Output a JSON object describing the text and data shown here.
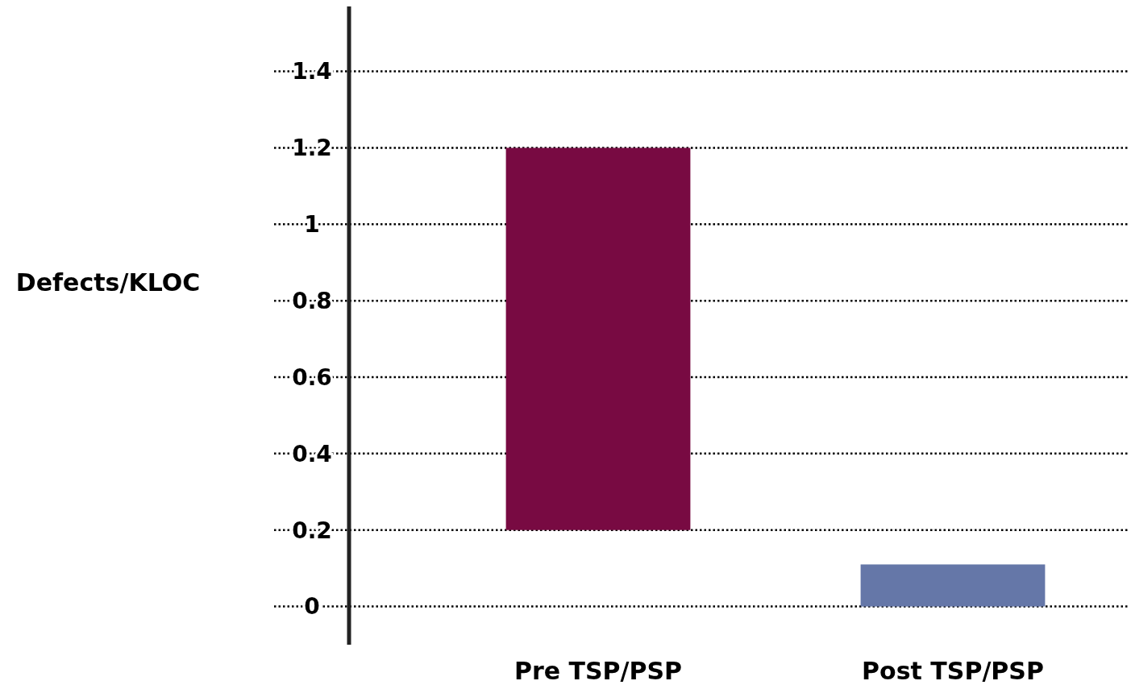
{
  "chart_data": {
    "type": "bar",
    "ylabel": "Defects/KLOC",
    "categories": [
      "Pre TSP/PSP",
      "Post TSP/PSP"
    ],
    "values": [
      1.0,
      0.11
    ],
    "base": [
      0.2,
      0
    ],
    "colors": [
      "#780a42",
      "#6577a8"
    ],
    "ylim": [
      -0.1,
      1.57
    ],
    "yticks": [
      0,
      0.2,
      0.4,
      0.6,
      0.8,
      1,
      1.2,
      1.4
    ],
    "grid": "y"
  }
}
